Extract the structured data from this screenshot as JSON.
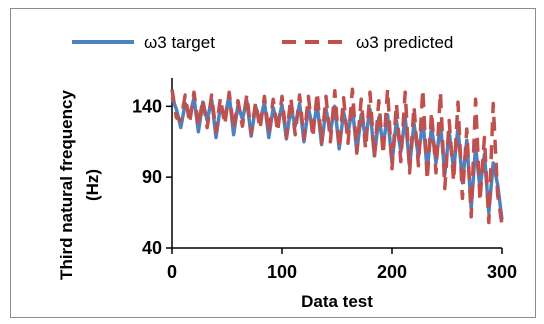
{
  "chart_data": {
    "type": "line",
    "xlabel": "Data test",
    "ylabel_lines": [
      "Third natural frequency",
      "(Hz)"
    ],
    "xlim": [
      0,
      300
    ],
    "ylim": [
      40,
      160
    ],
    "x_ticks": [
      0,
      100,
      200,
      300
    ],
    "y_ticks": [
      40,
      90,
      140
    ],
    "grid": false,
    "legend_position": "top",
    "colors": {
      "target": "#4f81bd",
      "predicted": "#c0504d"
    },
    "series": [
      {
        "name": "ω3 target",
        "style": "solid",
        "x": [
          0,
          4,
          8,
          12,
          16,
          20,
          24,
          28,
          32,
          36,
          40,
          44,
          48,
          52,
          56,
          60,
          64,
          68,
          72,
          76,
          80,
          84,
          88,
          92,
          96,
          100,
          104,
          108,
          112,
          116,
          120,
          124,
          128,
          132,
          136,
          140,
          144,
          148,
          152,
          156,
          160,
          164,
          168,
          172,
          176,
          180,
          184,
          188,
          192,
          196,
          200,
          204,
          208,
          212,
          216,
          220,
          224,
          228,
          232,
          236,
          240,
          244,
          248,
          252,
          256,
          260,
          264,
          268,
          272,
          276,
          280,
          284,
          288,
          292,
          296,
          300
        ],
        "values": [
          146,
          138,
          125,
          142,
          133,
          146,
          122,
          143,
          130,
          145,
          118,
          140,
          132,
          148,
          120,
          141,
          131,
          144,
          119,
          140,
          129,
          143,
          118,
          139,
          127,
          141,
          117,
          139,
          126,
          142,
          115,
          139,
          124,
          141,
          113,
          138,
          122,
          140,
          110,
          136,
          121,
          139,
          108,
          134,
          118,
          138,
          105,
          132,
          113,
          134,
          100,
          130,
          108,
          132,
          98,
          128,
          104,
          131,
          95,
          126,
          100,
          128,
          92,
          122,
          95,
          125,
          86,
          116,
          68,
          112,
          82,
          106,
          65,
          100,
          85,
          60
        ]
      },
      {
        "name": "ω3 predicted",
        "style": "dashed",
        "x": [
          0,
          4,
          8,
          12,
          16,
          20,
          24,
          28,
          32,
          36,
          40,
          44,
          48,
          52,
          56,
          60,
          64,
          68,
          72,
          76,
          80,
          84,
          88,
          92,
          96,
          100,
          104,
          108,
          112,
          116,
          120,
          124,
          128,
          132,
          136,
          140,
          144,
          148,
          152,
          156,
          160,
          164,
          168,
          172,
          176,
          180,
          184,
          188,
          192,
          196,
          200,
          204,
          208,
          212,
          216,
          220,
          224,
          228,
          232,
          236,
          240,
          244,
          248,
          252,
          256,
          260,
          264,
          268,
          272,
          276,
          280,
          284,
          288,
          292,
          296,
          300
        ],
        "values": [
          152,
          132,
          130,
          148,
          128,
          150,
          126,
          145,
          125,
          148,
          122,
          146,
          127,
          150,
          124,
          144,
          126,
          148,
          121,
          143,
          124,
          147,
          121,
          145,
          122,
          147,
          118,
          146,
          120,
          148,
          117,
          147,
          118,
          150,
          114,
          147,
          115,
          151,
          110,
          146,
          114,
          152,
          107,
          145,
          110,
          150,
          104,
          144,
          106,
          152,
          96,
          142,
          101,
          150,
          93,
          140,
          98,
          152,
          88,
          136,
          93,
          150,
          82,
          130,
          87,
          143,
          75,
          124,
          62,
          145,
          73,
          118,
          58,
          142,
          78,
          56
        ]
      }
    ]
  }
}
